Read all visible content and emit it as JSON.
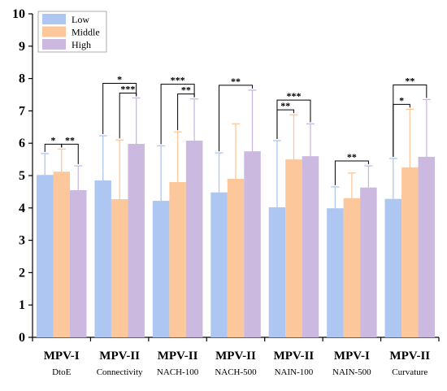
{
  "chart_data": {
    "type": "bar",
    "title": "",
    "xlabel": "",
    "ylabel": "",
    "ylim": [
      0,
      10
    ],
    "yticks": [
      0,
      1,
      2,
      3,
      4,
      5,
      6,
      7,
      8,
      9,
      10
    ],
    "legend_position": "top-left",
    "grid": false,
    "groups": [
      {
        "main": "MPV-I",
        "sub": "DtoE"
      },
      {
        "main": "MPV-II",
        "sub": "Connectivity"
      },
      {
        "main": "MPV-II",
        "sub": "NACH-100"
      },
      {
        "main": "MPV-II",
        "sub": "NACH-500"
      },
      {
        "main": "MPV-II",
        "sub": "NAIN-100"
      },
      {
        "main": "MPV-I",
        "sub": "NAIN-500"
      },
      {
        "main": "MPV-II",
        "sub": "Curvature"
      }
    ],
    "series": [
      {
        "name": "Low",
        "color": "#aec7f2",
        "values": [
          5.02,
          4.85,
          4.22,
          4.48,
          4.02,
          3.99,
          4.28
        ],
        "errors": [
          0.66,
          1.38,
          1.7,
          1.22,
          2.06,
          0.66,
          1.25
        ]
      },
      {
        "name": "Middle",
        "color": "#fcc79b",
        "values": [
          5.12,
          4.27,
          4.8,
          4.9,
          5.5,
          4.3,
          5.25
        ],
        "errors": [
          0.7,
          1.83,
          1.55,
          1.7,
          1.38,
          0.78,
          1.8
        ]
      },
      {
        "name": "High",
        "color": "#cbb9e0",
        "values": [
          4.55,
          5.98,
          6.08,
          5.75,
          5.6,
          4.63,
          5.58
        ],
        "errors": [
          0.75,
          1.42,
          1.29,
          1.89,
          1.0,
          0.67,
          1.77
        ]
      }
    ],
    "significance": [
      {
        "group": 0,
        "from": 0,
        "to": 1,
        "level": 0,
        "label": "*"
      },
      {
        "group": 0,
        "from": 1,
        "to": 2,
        "level": 0,
        "label": "**"
      },
      {
        "group": 1,
        "from": 0,
        "to": 2,
        "level": 1,
        "label": "*"
      },
      {
        "group": 1,
        "from": 1,
        "to": 2,
        "level": 0,
        "label": "***"
      },
      {
        "group": 2,
        "from": 0,
        "to": 2,
        "level": 1,
        "label": "***"
      },
      {
        "group": 2,
        "from": 1,
        "to": 2,
        "level": 0,
        "label": "**"
      },
      {
        "group": 3,
        "from": 0,
        "to": 2,
        "level": 0,
        "label": "**"
      },
      {
        "group": 4,
        "from": 0,
        "to": 2,
        "level": 1,
        "label": "***"
      },
      {
        "group": 4,
        "from": 0,
        "to": 1,
        "level": 0,
        "label": "**"
      },
      {
        "group": 5,
        "from": 0,
        "to": 2,
        "level": 0,
        "label": "**"
      },
      {
        "group": 6,
        "from": 0,
        "to": 2,
        "level": 1,
        "label": "**"
      },
      {
        "group": 6,
        "from": 0,
        "to": 1,
        "level": 0,
        "label": "*"
      }
    ]
  }
}
